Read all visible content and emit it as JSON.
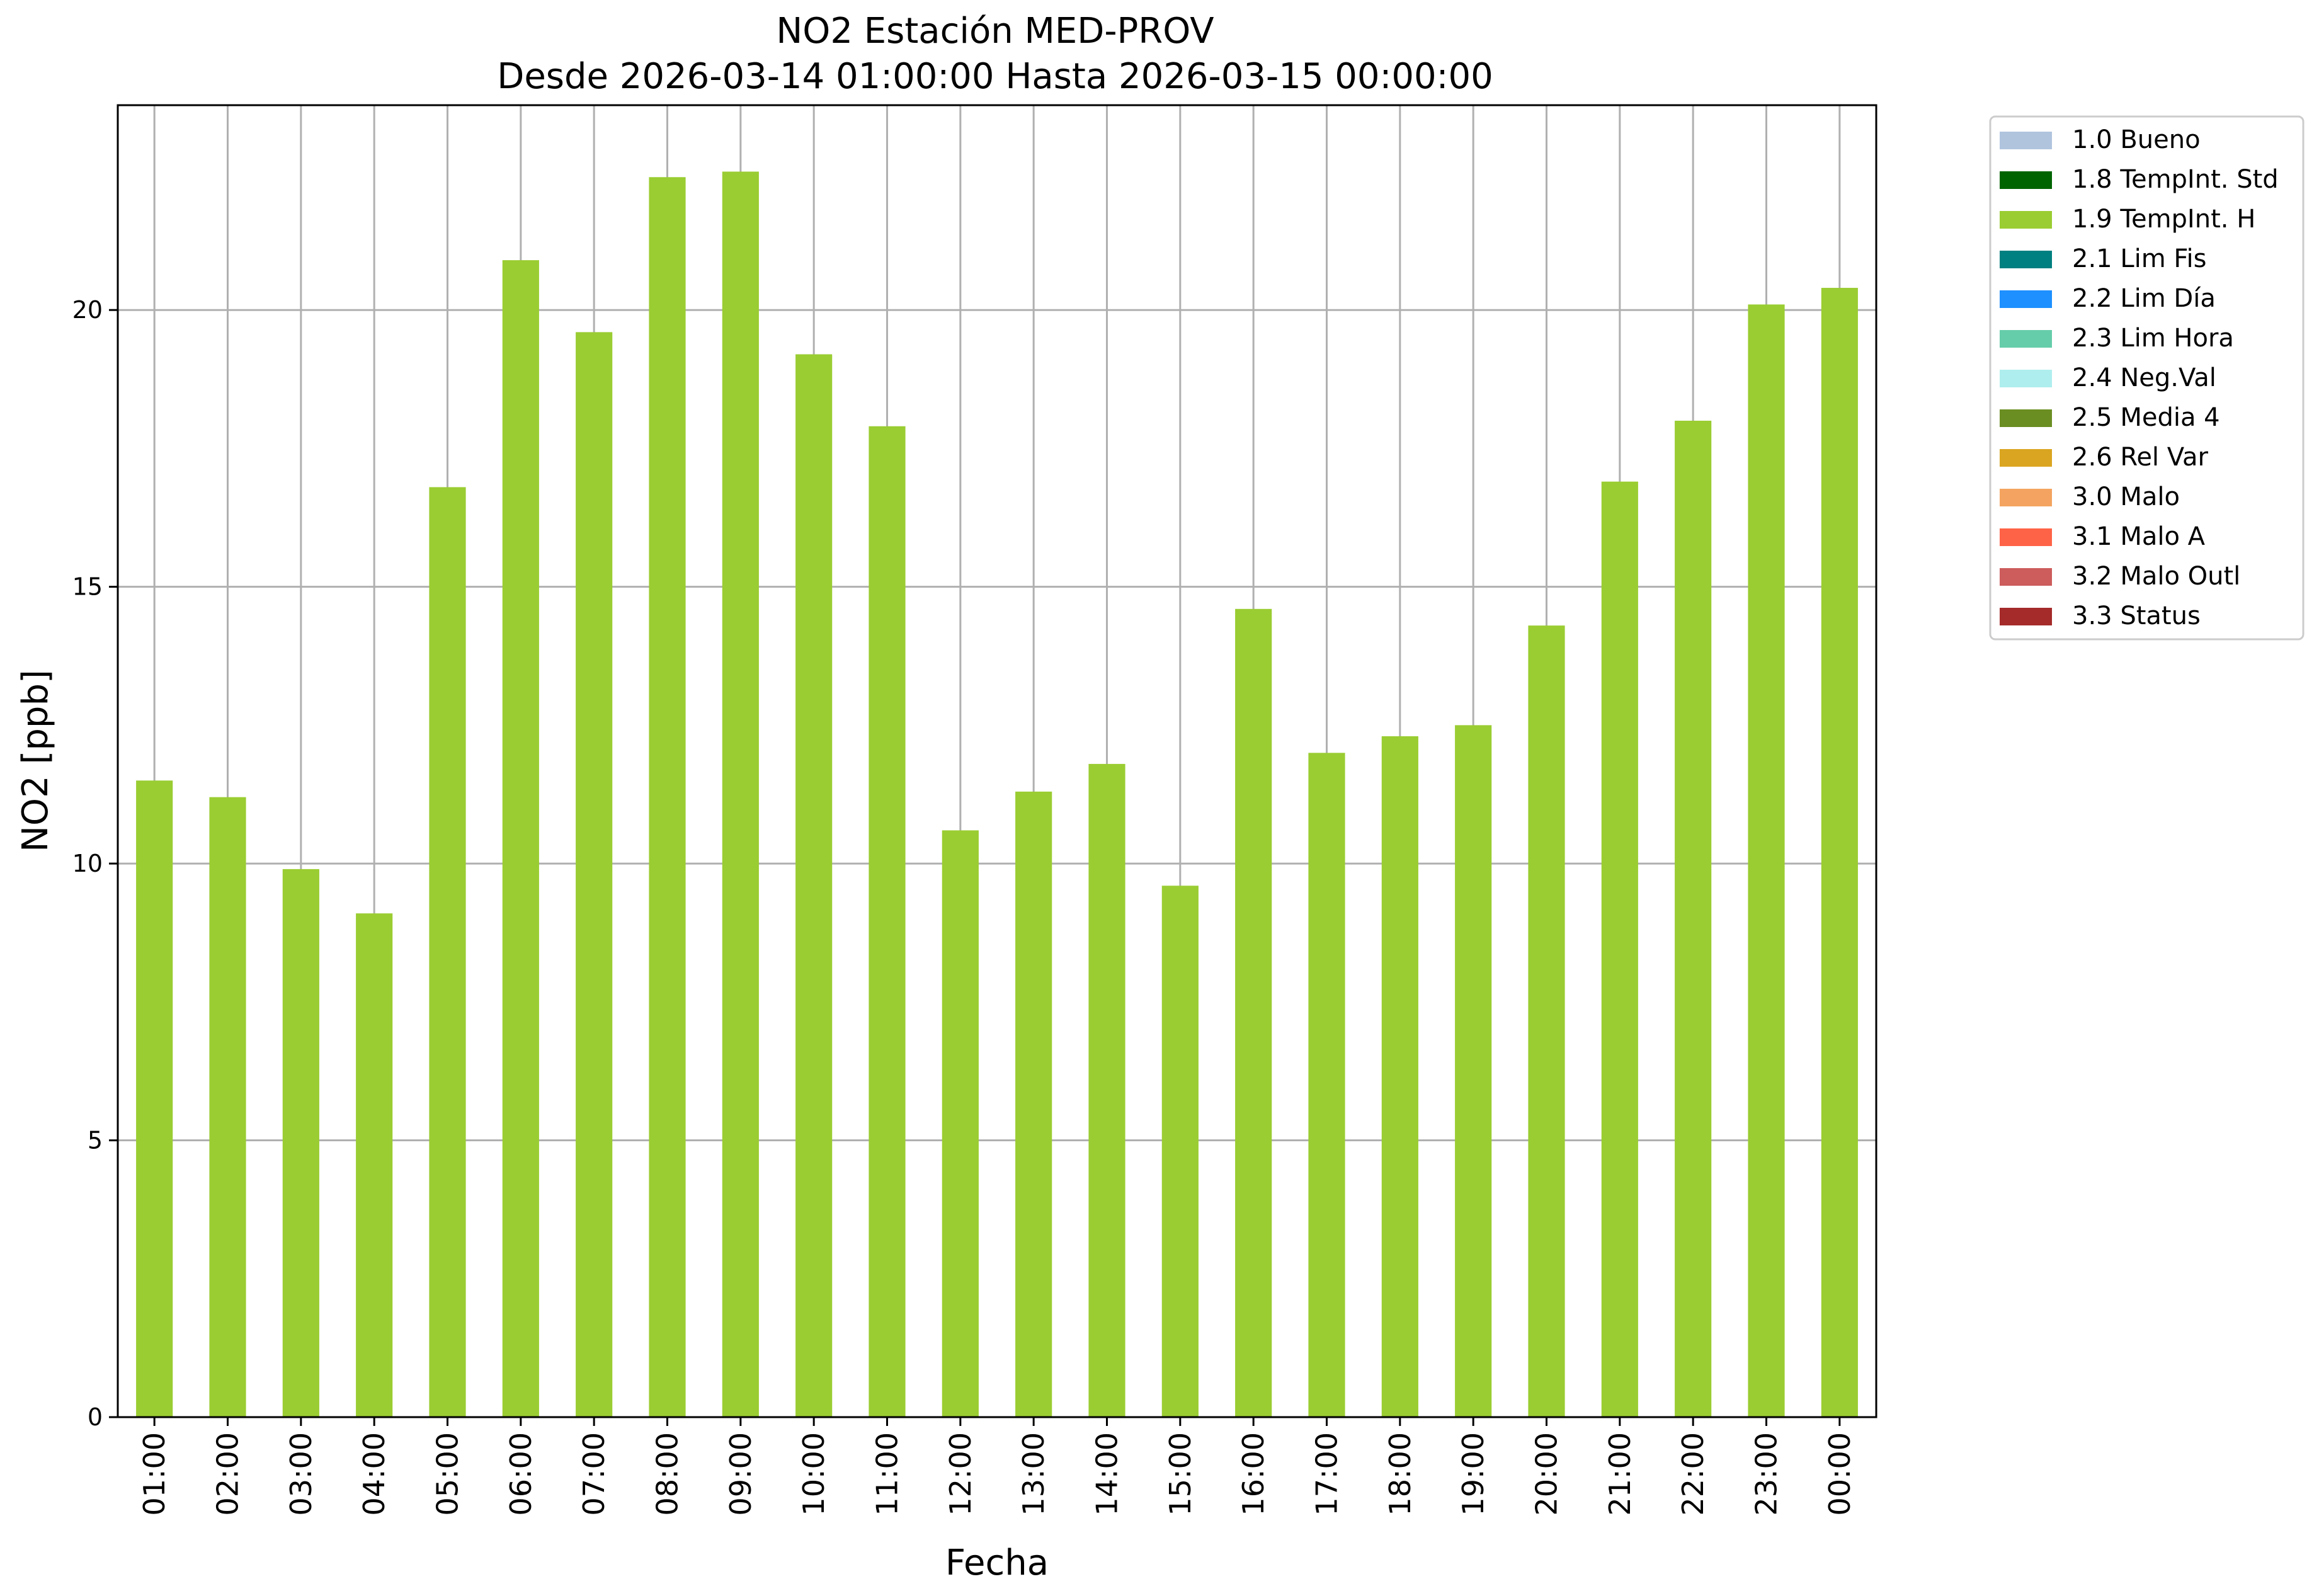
{
  "chart_data": {
    "type": "bar",
    "title": "NO2 Estación MED-PROV",
    "subtitle": "Desde 2026-03-14 01:00:00 Hasta 2026-03-15 00:00:00",
    "xlabel": "Fecha",
    "ylabel": "NO2 [ppb]",
    "ylim": [
      0,
      23.7
    ],
    "yticks": [
      0,
      5,
      10,
      15,
      20
    ],
    "grid": true,
    "legend_position": "outside-right",
    "categories": [
      "01:00",
      "02:00",
      "03:00",
      "04:00",
      "05:00",
      "06:00",
      "07:00",
      "08:00",
      "09:00",
      "10:00",
      "11:00",
      "12:00",
      "13:00",
      "14:00",
      "15:00",
      "16:00",
      "17:00",
      "18:00",
      "19:00",
      "20:00",
      "21:00",
      "22:00",
      "23:00",
      "00:00"
    ],
    "series": [
      {
        "name": "1.9 TempInt. H",
        "color": "#9acd32",
        "values": [
          11.5,
          11.2,
          9.9,
          9.1,
          16.8,
          20.9,
          19.6,
          22.4,
          22.5,
          19.2,
          17.9,
          10.6,
          11.3,
          11.8,
          9.6,
          14.6,
          12.0,
          12.3,
          12.5,
          14.3,
          16.9,
          18.0,
          20.1,
          20.4
        ]
      }
    ],
    "legend": [
      {
        "label": "1.0 Bueno",
        "color": "#b0c4de"
      },
      {
        "label": "1.8 TempInt. Std",
        "color": "#006400"
      },
      {
        "label": "1.9 TempInt. H",
        "color": "#9acd32"
      },
      {
        "label": "2.1 Lim Fis",
        "color": "#008080"
      },
      {
        "label": "2.2 Lim Día",
        "color": "#1e90ff"
      },
      {
        "label": "2.3 Lim Hora",
        "color": "#66cdaa"
      },
      {
        "label": "2.4 Neg.Val",
        "color": "#afeeee"
      },
      {
        "label": "2.5 Media 4",
        "color": "#6b8e23"
      },
      {
        "label": "2.6 Rel Var",
        "color": "#daa520"
      },
      {
        "label": "3.0 Malo",
        "color": "#f4a460"
      },
      {
        "label": "3.1 Malo A",
        "color": "#ff6347"
      },
      {
        "label": "3.2 Malo Outl",
        "color": "#cd5c5c"
      },
      {
        "label": "3.3 Status",
        "color": "#a52a2a"
      }
    ]
  }
}
